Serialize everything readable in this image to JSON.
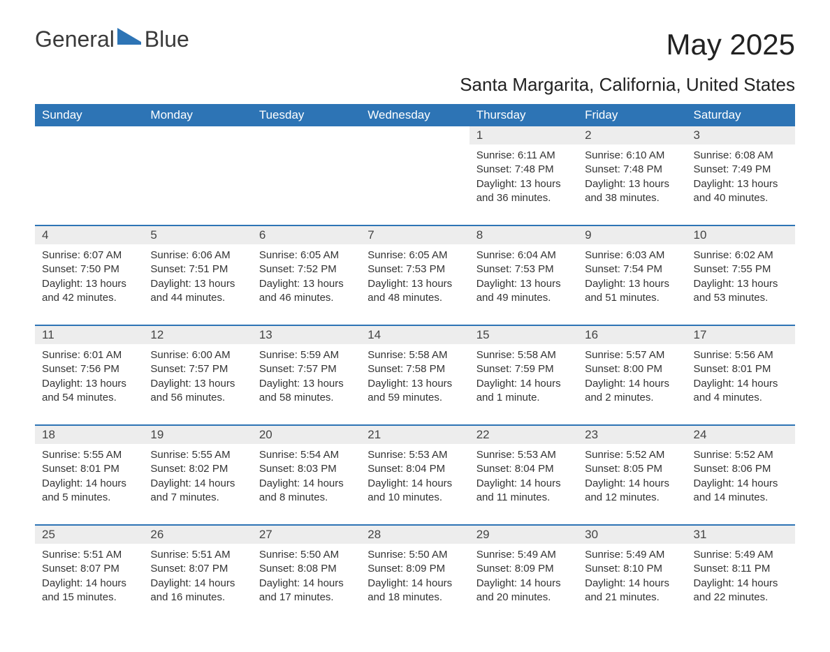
{
  "brand": {
    "name1": "General",
    "name2": "Blue"
  },
  "title": "May 2025",
  "location": "Santa Margarita, California, United States",
  "header_bg": "#2d74b5",
  "header_fg": "#ffffff",
  "daynum_bg": "#ededed",
  "row_border": "#2d74b5",
  "text_color": "#333333",
  "columns": [
    "Sunday",
    "Monday",
    "Tuesday",
    "Wednesday",
    "Thursday",
    "Friday",
    "Saturday"
  ],
  "weeks": [
    [
      {
        "empty": true
      },
      {
        "empty": true
      },
      {
        "empty": true
      },
      {
        "empty": true
      },
      {
        "day": "1",
        "sunrise": "6:11 AM",
        "sunset": "7:48 PM",
        "daylight": "13 hours and 36 minutes."
      },
      {
        "day": "2",
        "sunrise": "6:10 AM",
        "sunset": "7:48 PM",
        "daylight": "13 hours and 38 minutes."
      },
      {
        "day": "3",
        "sunrise": "6:08 AM",
        "sunset": "7:49 PM",
        "daylight": "13 hours and 40 minutes."
      }
    ],
    [
      {
        "day": "4",
        "sunrise": "6:07 AM",
        "sunset": "7:50 PM",
        "daylight": "13 hours and 42 minutes."
      },
      {
        "day": "5",
        "sunrise": "6:06 AM",
        "sunset": "7:51 PM",
        "daylight": "13 hours and 44 minutes."
      },
      {
        "day": "6",
        "sunrise": "6:05 AM",
        "sunset": "7:52 PM",
        "daylight": "13 hours and 46 minutes."
      },
      {
        "day": "7",
        "sunrise": "6:05 AM",
        "sunset": "7:53 PM",
        "daylight": "13 hours and 48 minutes."
      },
      {
        "day": "8",
        "sunrise": "6:04 AM",
        "sunset": "7:53 PM",
        "daylight": "13 hours and 49 minutes."
      },
      {
        "day": "9",
        "sunrise": "6:03 AM",
        "sunset": "7:54 PM",
        "daylight": "13 hours and 51 minutes."
      },
      {
        "day": "10",
        "sunrise": "6:02 AM",
        "sunset": "7:55 PM",
        "daylight": "13 hours and 53 minutes."
      }
    ],
    [
      {
        "day": "11",
        "sunrise": "6:01 AM",
        "sunset": "7:56 PM",
        "daylight": "13 hours and 54 minutes."
      },
      {
        "day": "12",
        "sunrise": "6:00 AM",
        "sunset": "7:57 PM",
        "daylight": "13 hours and 56 minutes."
      },
      {
        "day": "13",
        "sunrise": "5:59 AM",
        "sunset": "7:57 PM",
        "daylight": "13 hours and 58 minutes."
      },
      {
        "day": "14",
        "sunrise": "5:58 AM",
        "sunset": "7:58 PM",
        "daylight": "13 hours and 59 minutes."
      },
      {
        "day": "15",
        "sunrise": "5:58 AM",
        "sunset": "7:59 PM",
        "daylight": "14 hours and 1 minute."
      },
      {
        "day": "16",
        "sunrise": "5:57 AM",
        "sunset": "8:00 PM",
        "daylight": "14 hours and 2 minutes."
      },
      {
        "day": "17",
        "sunrise": "5:56 AM",
        "sunset": "8:01 PM",
        "daylight": "14 hours and 4 minutes."
      }
    ],
    [
      {
        "day": "18",
        "sunrise": "5:55 AM",
        "sunset": "8:01 PM",
        "daylight": "14 hours and 5 minutes."
      },
      {
        "day": "19",
        "sunrise": "5:55 AM",
        "sunset": "8:02 PM",
        "daylight": "14 hours and 7 minutes."
      },
      {
        "day": "20",
        "sunrise": "5:54 AM",
        "sunset": "8:03 PM",
        "daylight": "14 hours and 8 minutes."
      },
      {
        "day": "21",
        "sunrise": "5:53 AM",
        "sunset": "8:04 PM",
        "daylight": "14 hours and 10 minutes."
      },
      {
        "day": "22",
        "sunrise": "5:53 AM",
        "sunset": "8:04 PM",
        "daylight": "14 hours and 11 minutes."
      },
      {
        "day": "23",
        "sunrise": "5:52 AM",
        "sunset": "8:05 PM",
        "daylight": "14 hours and 12 minutes."
      },
      {
        "day": "24",
        "sunrise": "5:52 AM",
        "sunset": "8:06 PM",
        "daylight": "14 hours and 14 minutes."
      }
    ],
    [
      {
        "day": "25",
        "sunrise": "5:51 AM",
        "sunset": "8:07 PM",
        "daylight": "14 hours and 15 minutes."
      },
      {
        "day": "26",
        "sunrise": "5:51 AM",
        "sunset": "8:07 PM",
        "daylight": "14 hours and 16 minutes."
      },
      {
        "day": "27",
        "sunrise": "5:50 AM",
        "sunset": "8:08 PM",
        "daylight": "14 hours and 17 minutes."
      },
      {
        "day": "28",
        "sunrise": "5:50 AM",
        "sunset": "8:09 PM",
        "daylight": "14 hours and 18 minutes."
      },
      {
        "day": "29",
        "sunrise": "5:49 AM",
        "sunset": "8:09 PM",
        "daylight": "14 hours and 20 minutes."
      },
      {
        "day": "30",
        "sunrise": "5:49 AM",
        "sunset": "8:10 PM",
        "daylight": "14 hours and 21 minutes."
      },
      {
        "day": "31",
        "sunrise": "5:49 AM",
        "sunset": "8:11 PM",
        "daylight": "14 hours and 22 minutes."
      }
    ]
  ],
  "labels": {
    "sunrise": "Sunrise:",
    "sunset": "Sunset:",
    "daylight": "Daylight:"
  }
}
